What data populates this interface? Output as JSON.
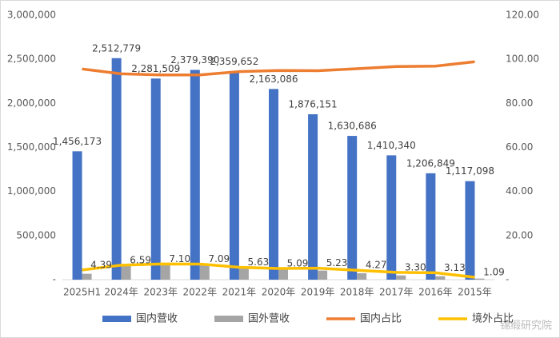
{
  "chart_data": {
    "type": "combo",
    "categories": [
      "2025H1",
      "2024年",
      "2023年",
      "2022年",
      "2021年",
      "2020年",
      "2019年",
      "2018年",
      "2017年",
      "2016年",
      "2015年"
    ],
    "series": [
      {
        "name": "国内营收",
        "type": "bar",
        "color": "#4472c4",
        "values": [
          1456173,
          2512779,
          2281509,
          2379390,
          2359652,
          2163086,
          1876151,
          1630686,
          1410340,
          1206849,
          1117098
        ],
        "value_labels": [
          "1,456,173",
          "2,512,779",
          "2,281,509",
          "2,379,390",
          "2,359,652",
          "2,163,086",
          "1,876,151",
          "1,630,686",
          "1,410,340",
          "1,206,849",
          "1,117,098"
        ]
      },
      {
        "name": "国外营收",
        "type": "bar",
        "color": "#a5a5a5",
        "values": [
          66900,
          177300,
          174400,
          181600,
          140800,
          116000,
          103500,
          72700,
          48100,
          39000,
          12300
        ]
      },
      {
        "name": "国内占比",
        "type": "line",
        "axis": "y2",
        "color": "#ed7d31",
        "values": [
          95.6,
          93.4,
          92.9,
          92.9,
          94.4,
          94.9,
          94.8,
          95.7,
          96.7,
          96.9,
          98.9
        ]
      },
      {
        "name": "境外占比",
        "type": "line",
        "axis": "y2",
        "color": "#ffc000",
        "values": [
          4.39,
          6.59,
          7.1,
          7.09,
          5.63,
          5.09,
          5.23,
          4.27,
          3.3,
          3.13,
          1.09
        ],
        "value_labels": [
          "4.39",
          "6.59",
          "7.10",
          "7.09",
          "5.63",
          "5.09",
          "5.23",
          "4.27",
          "3.30",
          "3.13",
          "1.09"
        ]
      }
    ],
    "ylim": [
      0,
      3000000
    ],
    "yticks": [
      {
        "value": 0,
        "label": "-"
      },
      {
        "value": 500000,
        "label": "500,000"
      },
      {
        "value": 1000000,
        "label": "1,000,000"
      },
      {
        "value": 1500000,
        "label": "1,500,000"
      },
      {
        "value": 2000000,
        "label": "2,000,000"
      },
      {
        "value": 2500000,
        "label": "2,500,000"
      },
      {
        "value": 3000000,
        "label": "3,000,000"
      }
    ],
    "y2lim": [
      0,
      120
    ],
    "y2ticks": [
      {
        "value": 0,
        "label": "-"
      },
      {
        "value": 20,
        "label": "20.00"
      },
      {
        "value": 40,
        "label": "40.00"
      },
      {
        "value": 60,
        "label": "60.00"
      },
      {
        "value": 80,
        "label": "80.00"
      },
      {
        "value": 100,
        "label": "100.00"
      },
      {
        "value": 120,
        "label": "120.00"
      }
    ],
    "grid": false,
    "legend": "bottom",
    "watermark": "锦缎研究院"
  }
}
